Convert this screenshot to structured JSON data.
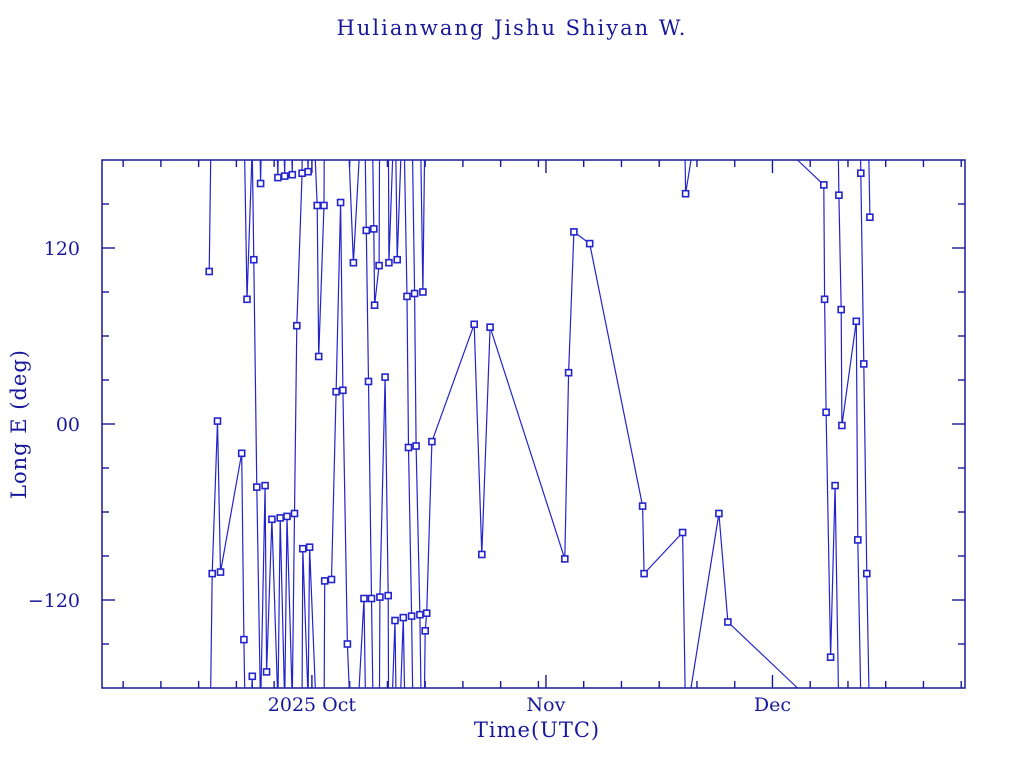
{
  "title": "Hulianwang Jishu Shiyan W.",
  "colors": {
    "text": "#18189B",
    "axis": "#18189B",
    "line": "#2424CC",
    "marker_stroke": "#2424CC",
    "marker_fill": "#FFFFFF",
    "background": "#FFFFFF"
  },
  "chart_data": {
    "type": "line",
    "title": "Hulianwang Jishu Shiyan W.",
    "xlabel": "Time(UTC)",
    "ylabel": "Long E (deg)",
    "grid": false,
    "legend": "none",
    "marker": "open-square",
    "wrap_longitude_at": 180,
    "x_axis": {
      "unit": "days relative to 2025-10-01 (UTC)",
      "range": [
        -27.8,
        86.5
      ],
      "major_ticks": [
        {
          "value": 0,
          "label": "2025 Oct"
        },
        {
          "value": 31,
          "label": "Nov"
        },
        {
          "value": 61,
          "label": "Dec"
        }
      ],
      "minor_ticks": [
        -25,
        -20,
        -15,
        -10,
        -5,
        5,
        10,
        15,
        20,
        25,
        30,
        36,
        41,
        46,
        51,
        56,
        66,
        71,
        76,
        81,
        86
      ]
    },
    "y_axis": {
      "unit": "degrees east longitude",
      "range": [
        -180,
        180
      ],
      "major_ticks": [
        {
          "value": 120,
          "label": "120"
        },
        {
          "value": 0,
          "label": "00"
        },
        {
          "value": -120,
          "label": "−120"
        }
      ],
      "minor_ticks": [
        150,
        90,
        60,
        30,
        -30,
        -60,
        -90,
        -150
      ]
    },
    "points_t_days_vs_lon_deg": [
      [
        -13.6,
        104
      ],
      [
        -13.2,
        -102
      ],
      [
        -12.5,
        2
      ],
      [
        -12.1,
        -101
      ],
      [
        -9.3,
        -20
      ],
      [
        -9.0,
        -147
      ],
      [
        -8.6,
        85
      ],
      [
        -7.9,
        -172
      ],
      [
        -7.7,
        112
      ],
      [
        -7.3,
        -43
      ],
      [
        -6.8,
        164
      ],
      [
        -6.2,
        -42
      ],
      [
        -6.0,
        -169
      ],
      [
        -5.3,
        -65
      ],
      [
        -4.5,
        168
      ],
      [
        -4.2,
        -64
      ],
      [
        -3.6,
        169
      ],
      [
        -3.3,
        -63
      ],
      [
        -2.6,
        170
      ],
      [
        -2.3,
        -61
      ],
      [
        -2.0,
        67
      ],
      [
        -1.3,
        171
      ],
      [
        -1.2,
        -85
      ],
      [
        -0.5,
        172
      ],
      [
        -0.3,
        -84
      ],
      [
        0.7,
        149
      ],
      [
        0.9,
        46
      ],
      [
        1.6,
        149
      ],
      [
        1.7,
        -107
      ],
      [
        2.6,
        -106
      ],
      [
        3.2,
        22
      ],
      [
        3.8,
        151
      ],
      [
        4.1,
        23
      ],
      [
        4.7,
        -150
      ],
      [
        5.5,
        110
      ],
      [
        6.9,
        -119
      ],
      [
        7.2,
        132
      ],
      [
        7.5,
        29
      ],
      [
        7.9,
        -119
      ],
      [
        8.2,
        133
      ],
      [
        8.3,
        81
      ],
      [
        8.9,
        108
      ],
      [
        9.0,
        -118
      ],
      [
        9.7,
        32
      ],
      [
        10.1,
        -117
      ],
      [
        10.2,
        110
      ],
      [
        11.0,
        -134
      ],
      [
        11.3,
        112
      ],
      [
        12.1,
        -132
      ],
      [
        12.6,
        87
      ],
      [
        12.8,
        -16
      ],
      [
        13.2,
        -131
      ],
      [
        13.6,
        89
      ],
      [
        13.8,
        -15
      ],
      [
        14.3,
        -130
      ],
      [
        14.7,
        90
      ],
      [
        15.0,
        -141
      ],
      [
        15.2,
        -129
      ],
      [
        15.9,
        -12
      ],
      [
        21.5,
        68
      ],
      [
        22.5,
        -89
      ],
      [
        23.6,
        66
      ],
      [
        33.5,
        -92
      ],
      [
        34.0,
        35
      ],
      [
        34.7,
        131
      ],
      [
        36.8,
        123
      ],
      [
        43.8,
        -56
      ],
      [
        44.0,
        -102
      ],
      [
        49.1,
        -74
      ],
      [
        49.5,
        157
      ],
      [
        53.9,
        -61
      ],
      [
        55.1,
        -135
      ],
      [
        67.8,
        163
      ],
      [
        67.9,
        85
      ],
      [
        68.1,
        8
      ],
      [
        68.7,
        -159
      ],
      [
        69.3,
        -42
      ],
      [
        69.8,
        156
      ],
      [
        70.1,
        78
      ],
      [
        70.2,
        -1
      ],
      [
        72.1,
        70
      ],
      [
        72.3,
        -79
      ],
      [
        72.7,
        171
      ],
      [
        73.1,
        41
      ],
      [
        73.5,
        -102
      ],
      [
        73.9,
        141
      ]
    ]
  }
}
